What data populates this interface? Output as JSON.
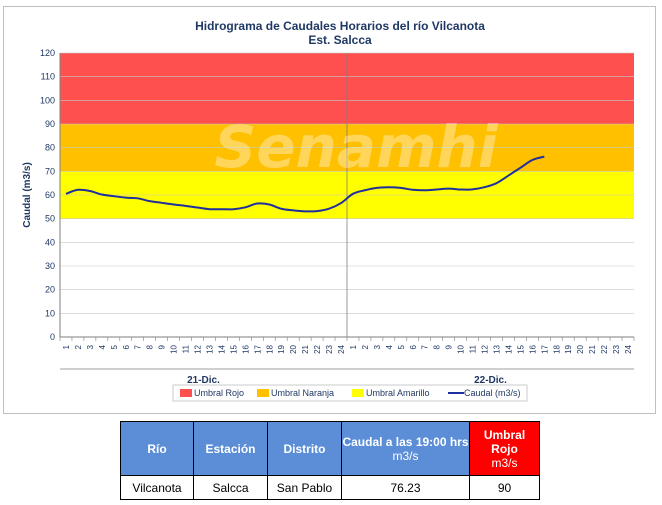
{
  "chart_data": {
    "type": "line",
    "title": "Hidrograma de Caudales Horarios del río Vilcanota",
    "subtitle": "Est. Salcca",
    "ylabel": "Caudal  (m3/s)",
    "ylim": [
      0,
      120
    ],
    "yticks": [
      0,
      10,
      20,
      30,
      40,
      50,
      60,
      70,
      80,
      90,
      100,
      110,
      120
    ],
    "xtick_labels": [
      "1",
      "2",
      "3",
      "4",
      "5",
      "6",
      "7",
      "8",
      "9",
      "10",
      "11",
      "12",
      "13",
      "14",
      "15",
      "16",
      "17",
      "18",
      "19",
      "20",
      "21",
      "22",
      "23",
      "24"
    ],
    "groups": [
      "21-Dic.",
      "22-Dic."
    ],
    "grid": true,
    "legend_position": "bottom",
    "thresholds": [
      {
        "name": "Umbral Rojo",
        "from": 90,
        "to": 120,
        "color": "#ff5050"
      },
      {
        "name": "Umbral Naranja",
        "from": 70,
        "to": 90,
        "color": "#ffc000"
      },
      {
        "name": "Umbral Amarillo",
        "from": 50,
        "to": 70,
        "color": "#ffff00"
      }
    ],
    "series": [
      {
        "name": "Caudal (m3/s)",
        "color": "#1f2f9e",
        "values": [
          60.5,
          62.2,
          61.7,
          60.2,
          59.5,
          58.9,
          58.6,
          57.4,
          56.7,
          56.0,
          55.4,
          54.7,
          54.0,
          54.0,
          54.0,
          54.8,
          56.4,
          56.0,
          54.2,
          53.5,
          53.1,
          53.2,
          54.2,
          56.6,
          60.5,
          62.0,
          63.0,
          63.3,
          63.0,
          62.2,
          62.0,
          62.3,
          62.7,
          62.3,
          62.4,
          63.3,
          65.0,
          68.2,
          71.5,
          74.8,
          76.23
        ]
      }
    ],
    "watermark": "Senamhi"
  },
  "table": {
    "headers": {
      "rio": "Río",
      "estacion": "Estación",
      "distrito": "Distrito",
      "caudal": "Caudal a las 19:00 hrs",
      "caudal_unit": "m3/s",
      "umbral": "Umbral Rojo",
      "umbral_unit": "m3/s"
    },
    "row": {
      "rio": "Vilcanota",
      "estacion": "Salcca",
      "distrito": "San Pablo",
      "caudal": "76.23",
      "umbral": "90"
    }
  }
}
